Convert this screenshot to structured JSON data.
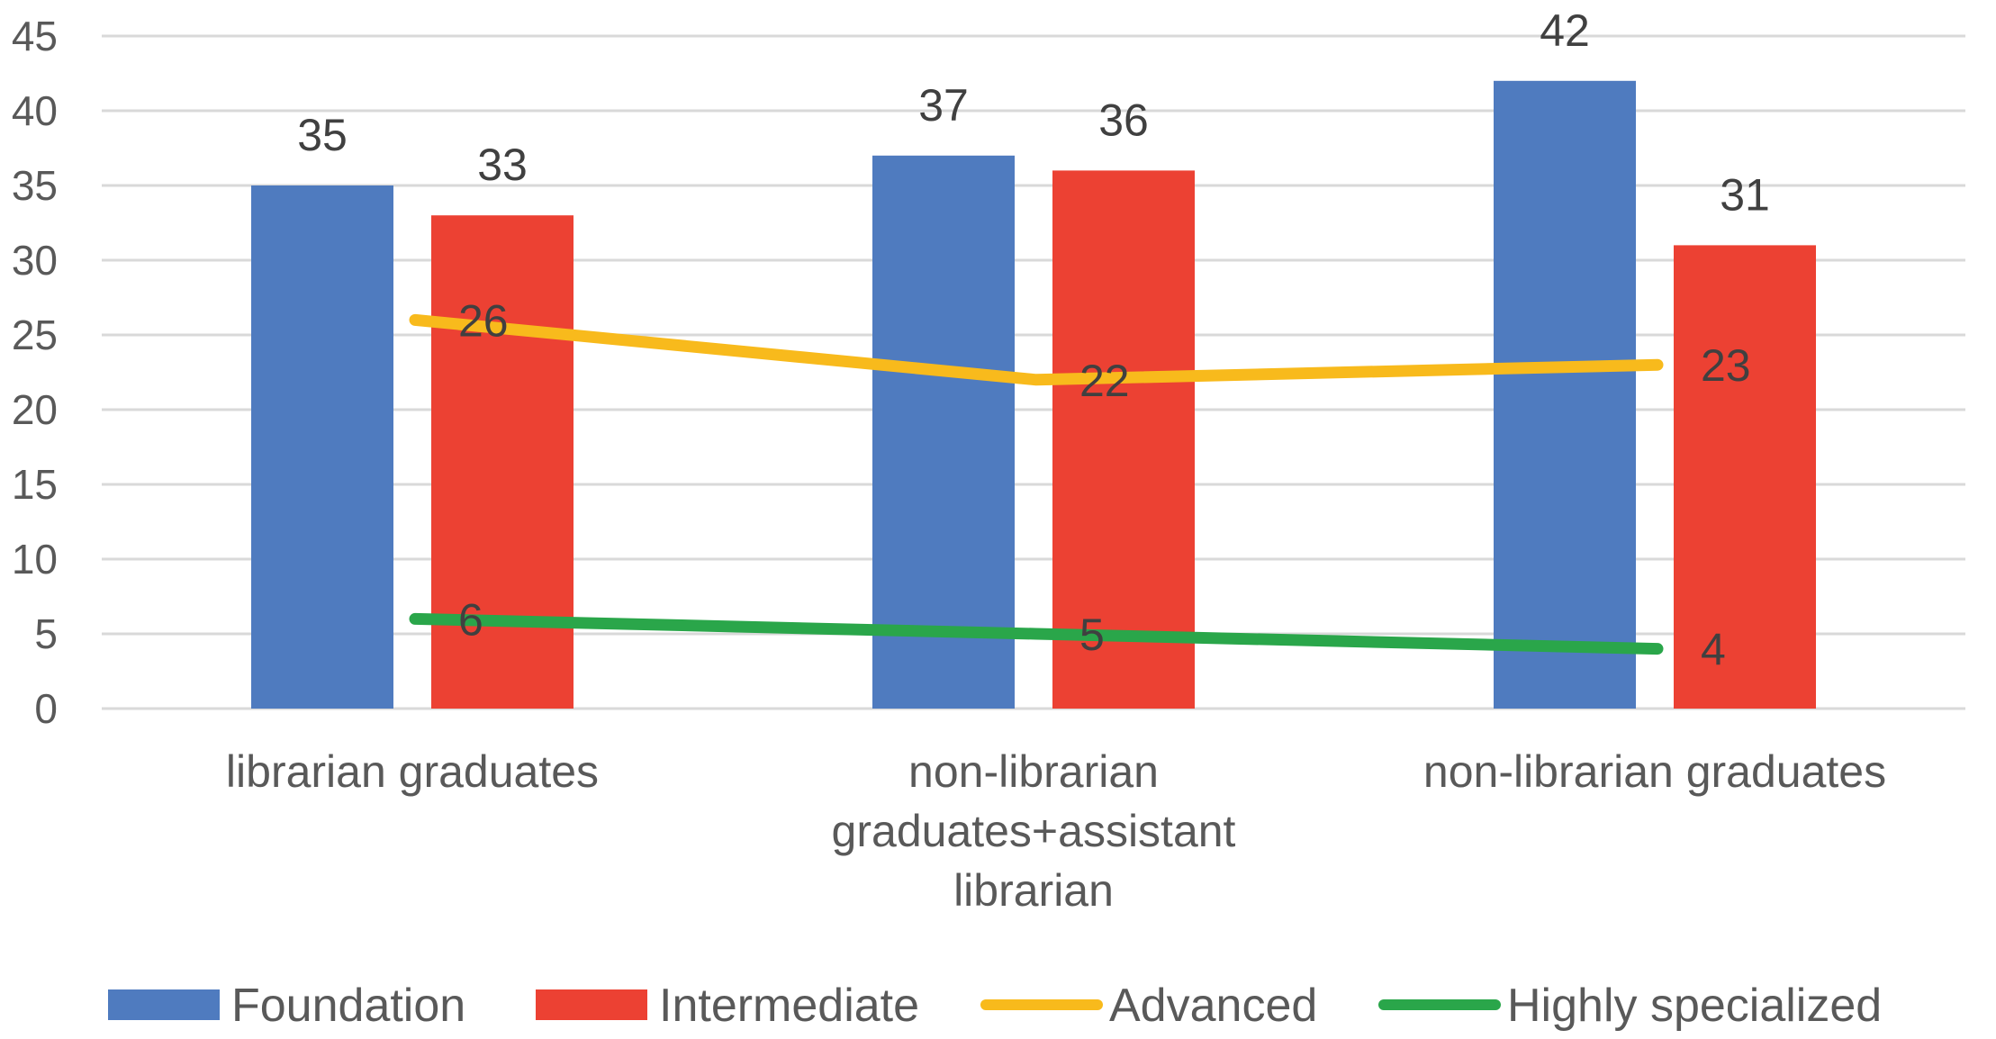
{
  "chart_data": {
    "type": "bar",
    "categories": [
      [
        "librarian graduates"
      ],
      [
        "non-librarian",
        "graduates+assistant",
        "librarian"
      ],
      [
        "non-librarian graduates"
      ]
    ],
    "ylim": [
      0,
      45
    ],
    "yticks": [
      0,
      5,
      10,
      15,
      20,
      25,
      30,
      35,
      40,
      45
    ],
    "grid": true,
    "legend": "bottom",
    "series": [
      {
        "name": "Foundation",
        "kind": "bar",
        "color": "#4F7BBF",
        "values": [
          35,
          37,
          42
        ]
      },
      {
        "name": "Intermediate",
        "kind": "bar",
        "color": "#EC4133",
        "values": [
          33,
          36,
          31
        ]
      },
      {
        "name": "Advanced",
        "kind": "line",
        "color": "#F8BA1C",
        "values": [
          26,
          22,
          23
        ]
      },
      {
        "name": "Highly specialized",
        "kind": "line",
        "color": "#2AA64A",
        "values": [
          6,
          5,
          4
        ]
      }
    ]
  }
}
